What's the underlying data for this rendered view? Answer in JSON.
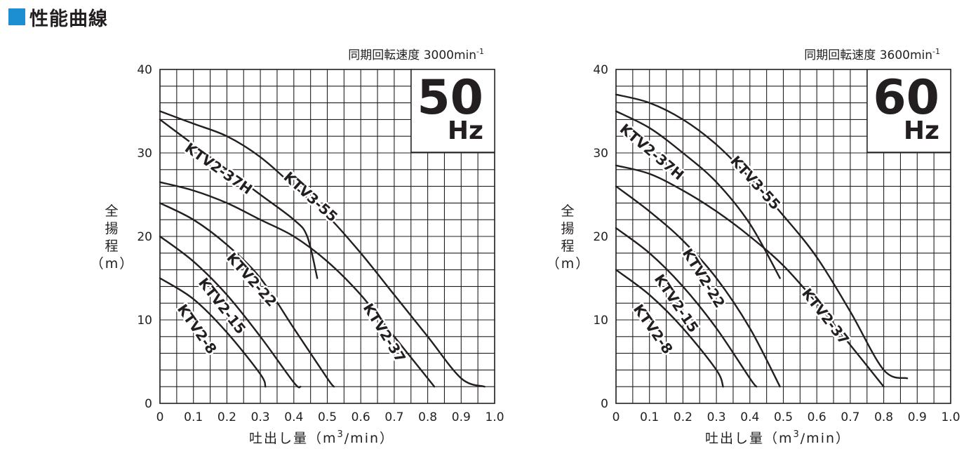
{
  "header": {
    "title": "性能曲線",
    "accent_color": "#1b8fd2"
  },
  "chart_data": [
    {
      "type": "line",
      "frequency_badge": {
        "value": "50",
        "unit": "Hz"
      },
      "speed": {
        "label": "同期回転速度",
        "value": "3000",
        "unit": "min",
        "exponent": "-1"
      },
      "xlabel": {
        "text": "吐出し量（m",
        "sup": "3",
        "tail": "/min）"
      },
      "ylabel": [
        "全",
        "揚",
        "程",
        "（m）"
      ],
      "xlim": [
        0,
        1.0
      ],
      "ylim": [
        0,
        40
      ],
      "xticks": [
        "0",
        "0.1",
        "0.2",
        "0.3",
        "0.4",
        "0.5",
        "0.6",
        "0.7",
        "0.8",
        "0.9",
        "1.0"
      ],
      "yticks": [
        "0",
        "10",
        "20",
        "30",
        "40"
      ],
      "grid": true,
      "series": [
        {
          "name": "KTV2-8",
          "points": [
            [
              0,
              15
            ],
            [
              0.1,
              12.5
            ],
            [
              0.2,
              8.5
            ],
            [
              0.3,
              3.5
            ],
            [
              0.315,
              2
            ]
          ]
        },
        {
          "name": "KTV2-15",
          "points": [
            [
              0,
              20
            ],
            [
              0.1,
              17
            ],
            [
              0.2,
              13
            ],
            [
              0.3,
              8
            ],
            [
              0.4,
              2.5
            ],
            [
              0.42,
              2
            ]
          ]
        },
        {
          "name": "KTV2-22",
          "points": [
            [
              0,
              24
            ],
            [
              0.1,
              22
            ],
            [
              0.2,
              19
            ],
            [
              0.3,
              15
            ],
            [
              0.4,
              9
            ],
            [
              0.5,
              3
            ],
            [
              0.52,
              2
            ]
          ]
        },
        {
          "name": "KTV2-37H",
          "points": [
            [
              0,
              34
            ],
            [
              0.1,
              31
            ],
            [
              0.2,
              28
            ],
            [
              0.3,
              25
            ],
            [
              0.4,
              22
            ],
            [
              0.44,
              20
            ],
            [
              0.47,
              15
            ]
          ]
        },
        {
          "name": "KTV2-37",
          "points": [
            [
              0,
              26.5
            ],
            [
              0.1,
              25.5
            ],
            [
              0.2,
              24
            ],
            [
              0.3,
              22
            ],
            [
              0.4,
              20
            ],
            [
              0.5,
              17
            ],
            [
              0.6,
              13
            ],
            [
              0.7,
              8
            ],
            [
              0.8,
              3
            ],
            [
              0.82,
              2
            ]
          ]
        },
        {
          "name": "KTV3-55",
          "points": [
            [
              0,
              35
            ],
            [
              0.1,
              33.5
            ],
            [
              0.2,
              32
            ],
            [
              0.3,
              29.5
            ],
            [
              0.4,
              26
            ],
            [
              0.5,
              22.5
            ],
            [
              0.6,
              18
            ],
            [
              0.7,
              13
            ],
            [
              0.8,
              8
            ],
            [
              0.9,
              3
            ],
            [
              0.97,
              2
            ]
          ]
        }
      ],
      "curve_labels": [
        "KTV2-8",
        "KTV2-15",
        "KTV2-22",
        "KTV2-37H",
        "KTV2-37",
        "KTV3-55"
      ]
    },
    {
      "type": "line",
      "frequency_badge": {
        "value": "60",
        "unit": "Hz"
      },
      "speed": {
        "label": "同期回転速度",
        "value": "3600",
        "unit": "min",
        "exponent": "-1"
      },
      "xlabel": {
        "text": "吐出し量（m",
        "sup": "3",
        "tail": "/min）"
      },
      "ylabel": [
        "全",
        "揚",
        "程",
        "（m）"
      ],
      "xlim": [
        0,
        1.0
      ],
      "ylim": [
        0,
        40
      ],
      "xticks": [
        "0",
        "0.1",
        "0.2",
        "0.3",
        "0.4",
        "0.5",
        "0.6",
        "0.7",
        "0.8",
        "0.9",
        "1.0"
      ],
      "yticks": [
        "0",
        "10",
        "20",
        "30",
        "40"
      ],
      "grid": true,
      "series": [
        {
          "name": "KTV2-8",
          "points": [
            [
              0,
              16
            ],
            [
              0.1,
              13
            ],
            [
              0.2,
              9
            ],
            [
              0.3,
              4
            ],
            [
              0.32,
              2
            ]
          ]
        },
        {
          "name": "KTV2-15",
          "points": [
            [
              0,
              21
            ],
            [
              0.1,
              18
            ],
            [
              0.2,
              14
            ],
            [
              0.3,
              9
            ],
            [
              0.4,
              3
            ],
            [
              0.42,
              2
            ]
          ]
        },
        {
          "name": "KTV2-22",
          "points": [
            [
              0,
              26
            ],
            [
              0.1,
              23
            ],
            [
              0.2,
              19.5
            ],
            [
              0.3,
              15
            ],
            [
              0.4,
              9
            ],
            [
              0.49,
              2
            ]
          ]
        },
        {
          "name": "KTV2-37H",
          "points": [
            [
              0,
              35
            ],
            [
              0.1,
              33
            ],
            [
              0.2,
              30
            ],
            [
              0.3,
              26.5
            ],
            [
              0.4,
              21.5
            ],
            [
              0.49,
              15
            ]
          ]
        },
        {
          "name": "KTV2-37",
          "points": [
            [
              0,
              28.5
            ],
            [
              0.1,
              27.5
            ],
            [
              0.2,
              25.5
            ],
            [
              0.3,
              23
            ],
            [
              0.4,
              20
            ],
            [
              0.5,
              16.5
            ],
            [
              0.6,
              12
            ],
            [
              0.7,
              7
            ],
            [
              0.8,
              2
            ]
          ]
        },
        {
          "name": "KTV3-55",
          "points": [
            [
              0,
              37
            ],
            [
              0.1,
              36
            ],
            [
              0.2,
              34
            ],
            [
              0.3,
              31
            ],
            [
              0.4,
              27
            ],
            [
              0.5,
              22.5
            ],
            [
              0.6,
              17.5
            ],
            [
              0.7,
              11
            ],
            [
              0.8,
              4
            ],
            [
              0.87,
              3
            ]
          ]
        }
      ],
      "curve_labels": [
        "KTV2-8",
        "KTV2-15",
        "KTV2-22",
        "KTV2-37H",
        "KTV2-37",
        "KTV3-55"
      ]
    }
  ]
}
